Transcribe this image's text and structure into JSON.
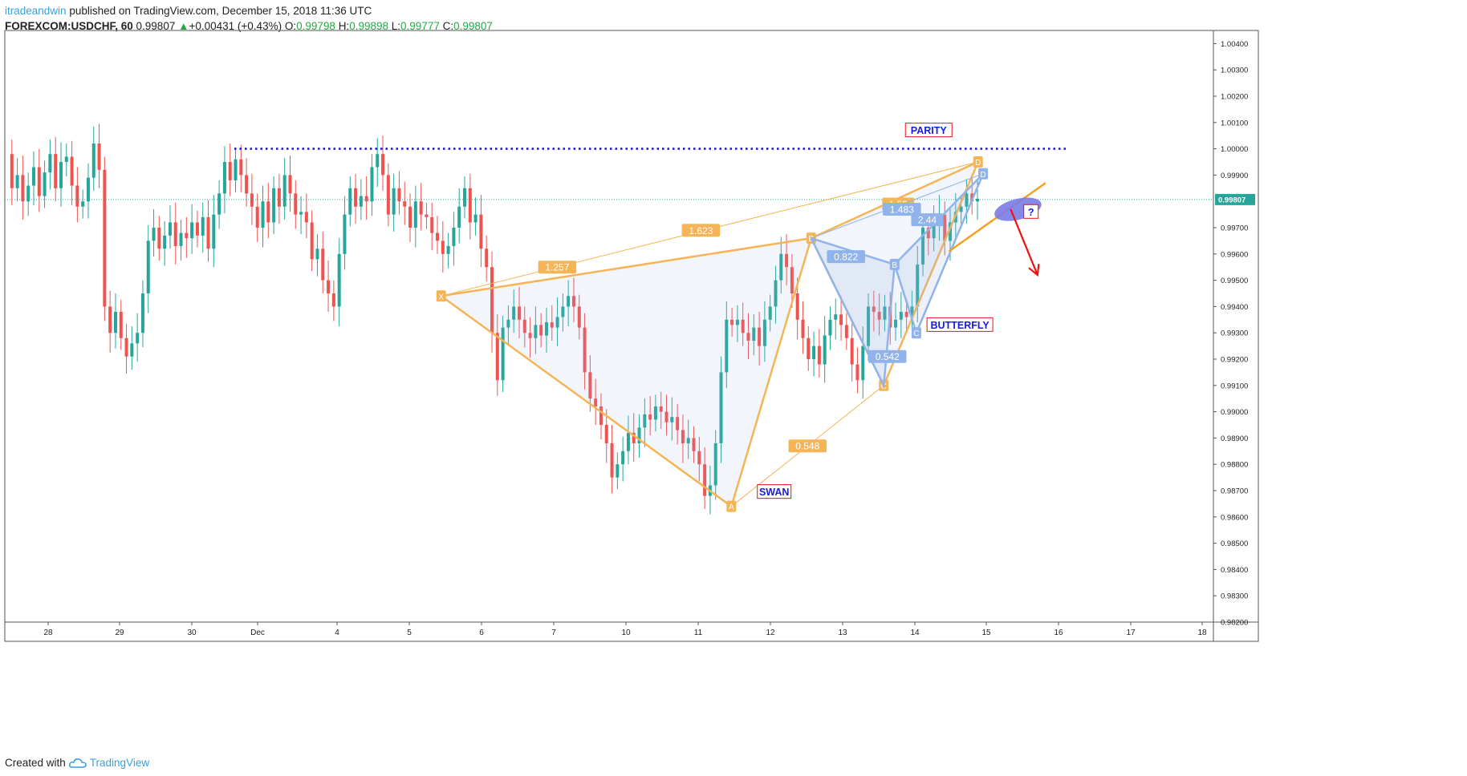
{
  "header": {
    "author": "itradeandwin",
    "published_text": " published on TradingView.com, December 15, 2018 11:36 UTC",
    "symbol": "FOREXCOM:USDCHF, 60",
    "last": "0.99807",
    "change_arrow": "▲",
    "change": "+0.00431 (+0.43%)",
    "o_label": "O:",
    "o_value": "0.99798",
    "h_label": "H:",
    "h_value": "0.99898",
    "l_label": "L:",
    "l_value": "0.99777",
    "c_label": "C:",
    "c_value": "0.99807"
  },
  "footer": {
    "created_with": "Created with",
    "brand": "TradingView",
    "logo_icon": "tradingview-cloud-icon"
  },
  "colors": {
    "up": "#26a69a",
    "down": "#ef5350",
    "swan": "#f5b455",
    "butterfly": "#8fb3ea",
    "parity_line": "#1a1adf",
    "current_line": "#26a69a",
    "arrow": "#ee1111",
    "trendline": "#f5a020",
    "ellipse": "#7b7be8"
  },
  "chart_data": {
    "type": "candlestick",
    "symbol": "FOREXCOM:USDCHF",
    "interval": "60",
    "ylim": [
      0.982,
      1.0045
    ],
    "y_ticks": [
      "1.00400",
      "1.00300",
      "1.00200",
      "1.00100",
      "1.00000",
      "0.99900",
      "0.99700",
      "0.99600",
      "0.99500",
      "0.99400",
      "0.99300",
      "0.99200",
      "0.99100",
      "0.99000",
      "0.98900",
      "0.98800",
      "0.98700",
      "0.98600",
      "0.98500",
      "0.98400",
      "0.98300",
      "0.98200"
    ],
    "x_ticks": [
      "28",
      "29",
      "30",
      "Dec",
      "4",
      "5",
      "6",
      "7",
      "10",
      "11",
      "12",
      "13",
      "14",
      "15",
      "16",
      "17",
      "18"
    ],
    "current_price": "0.99807",
    "parity_level": 1.0,
    "price_path": [
      [
        0,
        0.9998
      ],
      [
        1,
        0.9985
      ],
      [
        2,
        0.999
      ],
      [
        3,
        0.998
      ],
      [
        4,
        0.9986
      ],
      [
        5,
        0.9993
      ],
      [
        6,
        0.9982
      ],
      [
        7,
        0.9991
      ],
      [
        8,
        0.9998
      ],
      [
        9,
        0.9985
      ],
      [
        10,
        0.9995
      ],
      [
        11,
        0.9997
      ],
      [
        12,
        0.9986
      ],
      [
        13,
        0.9978
      ],
      [
        14,
        0.998
      ],
      [
        15,
        0.9989
      ],
      [
        16,
        1.0002
      ],
      [
        17,
        0.9992
      ],
      [
        18,
        0.994
      ],
      [
        19,
        0.993
      ],
      [
        20,
        0.9938
      ],
      [
        21,
        0.9928
      ],
      [
        22,
        0.9921
      ],
      [
        23,
        0.9926
      ],
      [
        24,
        0.993
      ],
      [
        25,
        0.9945
      ],
      [
        26,
        0.9965
      ],
      [
        27,
        0.997
      ],
      [
        28,
        0.9962
      ],
      [
        29,
        0.9967
      ],
      [
        30,
        0.9972
      ],
      [
        31,
        0.9963
      ],
      [
        32,
        0.9968
      ],
      [
        33,
        0.9966
      ],
      [
        34,
        0.9972
      ],
      [
        35,
        0.9967
      ],
      [
        36,
        0.9974
      ],
      [
        37,
        0.9962
      ],
      [
        38,
        0.9975
      ],
      [
        39,
        0.9983
      ],
      [
        40,
        0.9995
      ],
      [
        41,
        0.9988
      ],
      [
        42,
        0.9996
      ],
      [
        43,
        0.999
      ],
      [
        44,
        0.9983
      ],
      [
        45,
        0.9978
      ],
      [
        46,
        0.997
      ],
      [
        47,
        0.998
      ],
      [
        48,
        0.9972
      ],
      [
        49,
        0.9985
      ],
      [
        50,
        0.9978
      ],
      [
        51,
        0.999
      ],
      [
        52,
        0.9983
      ],
      [
        53,
        0.9975
      ],
      [
        54,
        0.9976
      ],
      [
        55,
        0.9972
      ],
      [
        56,
        0.9958
      ],
      [
        57,
        0.9962
      ],
      [
        58,
        0.995
      ],
      [
        59,
        0.9945
      ],
      [
        60,
        0.994
      ],
      [
        61,
        0.996
      ],
      [
        62,
        0.9975
      ],
      [
        63,
        0.9985
      ],
      [
        64,
        0.9978
      ],
      [
        65,
        0.9982
      ],
      [
        66,
        0.998
      ],
      [
        67,
        0.9993
      ],
      [
        68,
        0.9998
      ],
      [
        69,
        0.999
      ],
      [
        70,
        0.9975
      ],
      [
        71,
        0.9985
      ],
      [
        72,
        0.998
      ],
      [
        73,
        0.9978
      ],
      [
        74,
        0.997
      ],
      [
        75,
        0.998
      ],
      [
        76,
        0.9975
      ],
      [
        77,
        0.9974
      ],
      [
        78,
        0.9968
      ],
      [
        79,
        0.9965
      ],
      [
        80,
        0.996
      ],
      [
        81,
        0.9963
      ],
      [
        82,
        0.997
      ],
      [
        83,
        0.9978
      ],
      [
        84,
        0.9985
      ],
      [
        85,
        0.9972
      ],
      [
        86,
        0.9975
      ],
      [
        87,
        0.9962
      ],
      [
        88,
        0.9955
      ],
      [
        89,
        0.993
      ],
      [
        90,
        0.9912
      ],
      [
        91,
        0.9932
      ],
      [
        92,
        0.9935
      ],
      [
        93,
        0.994
      ],
      [
        94,
        0.9935
      ],
      [
        95,
        0.993
      ],
      [
        96,
        0.9928
      ],
      [
        97,
        0.9933
      ],
      [
        98,
        0.9929
      ],
      [
        99,
        0.9934
      ],
      [
        100,
        0.9932
      ],
      [
        101,
        0.9936
      ],
      [
        102,
        0.994
      ],
      [
        103,
        0.9944
      ],
      [
        104,
        0.994
      ],
      [
        105,
        0.9932
      ],
      [
        106,
        0.9915
      ],
      [
        107,
        0.9905
      ],
      [
        108,
        0.9902
      ],
      [
        109,
        0.9895
      ],
      [
        110,
        0.9888
      ],
      [
        111,
        0.9875
      ],
      [
        112,
        0.988
      ],
      [
        113,
        0.9885
      ],
      [
        114,
        0.9892
      ],
      [
        115,
        0.9888
      ],
      [
        116,
        0.9894
      ],
      [
        117,
        0.9899
      ],
      [
        118,
        0.9897
      ],
      [
        119,
        0.9902
      ],
      [
        120,
        0.99
      ],
      [
        121,
        0.9896
      ],
      [
        122,
        0.9898
      ],
      [
        123,
        0.9893
      ],
      [
        124,
        0.9888
      ],
      [
        125,
        0.989
      ],
      [
        126,
        0.9885
      ],
      [
        127,
        0.988
      ],
      [
        128,
        0.9868
      ],
      [
        129,
        0.9872
      ],
      [
        130,
        0.9888
      ],
      [
        131,
        0.9915
      ],
      [
        132,
        0.9935
      ],
      [
        133,
        0.9933
      ],
      [
        134,
        0.9935
      ],
      [
        135,
        0.993
      ],
      [
        136,
        0.9927
      ],
      [
        137,
        0.9932
      ],
      [
        138,
        0.9925
      ],
      [
        139,
        0.9935
      ],
      [
        140,
        0.994
      ],
      [
        141,
        0.995
      ],
      [
        142,
        0.996
      ],
      [
        143,
        0.9955
      ],
      [
        144,
        0.9945
      ],
      [
        145,
        0.9935
      ],
      [
        146,
        0.9928
      ],
      [
        147,
        0.992
      ],
      [
        148,
        0.9925
      ],
      [
        149,
        0.9918
      ],
      [
        150,
        0.9929
      ],
      [
        151,
        0.9935
      ],
      [
        152,
        0.9937
      ],
      [
        153,
        0.9933
      ],
      [
        154,
        0.9928
      ],
      [
        155,
        0.9918
      ],
      [
        156,
        0.9912
      ],
      [
        157,
        0.9925
      ],
      [
        158,
        0.994
      ],
      [
        159,
        0.9938
      ],
      [
        160,
        0.9935
      ],
      [
        161,
        0.994
      ],
      [
        162,
        0.9932
      ],
      [
        163,
        0.9935
      ],
      [
        164,
        0.9938
      ],
      [
        165,
        0.9936
      ],
      [
        166,
        0.994
      ],
      [
        167,
        0.9956
      ],
      [
        168,
        0.997
      ],
      [
        169,
        0.9966
      ],
      [
        170,
        0.9972
      ],
      [
        171,
        0.9975
      ],
      [
        172,
        0.9965
      ],
      [
        173,
        0.9972
      ],
      [
        174,
        0.9976
      ],
      [
        175,
        0.9978
      ],
      [
        176,
        0.9983
      ],
      [
        177,
        0.998
      ],
      [
        178,
        0.9981
      ]
    ],
    "patterns": [
      {
        "name": "SWAN",
        "color": "#f5b455",
        "points": [
          {
            "label": "X",
            "day": 7.4,
            "price": 0.9944
          },
          {
            "label": "A",
            "day": 11.4,
            "price": 0.9864
          },
          {
            "label": "B",
            "day": 12.5,
            "price": 0.9966
          },
          {
            "label": "C",
            "day": 13.5,
            "price": 0.991
          },
          {
            "label": "D",
            "day": 14.8,
            "price": 0.9995
          }
        ],
        "ratios": [
          {
            "text": "1.257",
            "day": 9.0,
            "price": 0.9955
          },
          {
            "text": "1.623",
            "day": 10.98,
            "price": 0.9969
          },
          {
            "text": "0.548",
            "day": 12.45,
            "price": 0.9887
          },
          {
            "text": "1.53",
            "day": 13.7,
            "price": 0.9979
          }
        ]
      },
      {
        "name": "BUTTERFLY",
        "color": "#8fb3ea",
        "points": [
          {
            "label": "B",
            "day": 13.65,
            "price": 0.9956
          },
          {
            "label": "C",
            "day": 13.95,
            "price": 0.993
          },
          {
            "label": "D",
            "day": 14.87,
            "price": 0.99905
          }
        ],
        "ratios": [
          {
            "text": "0.822",
            "day": 12.98,
            "price": 0.9959
          },
          {
            "text": "0.542",
            "day": 13.55,
            "price": 0.9921
          },
          {
            "text": "2.44",
            "day": 14.1,
            "price": 0.9973
          },
          {
            "text": "1.483",
            "day": 13.75,
            "price": 0.9977
          }
        ]
      }
    ],
    "annotations": [
      {
        "text": "PARITY",
        "day": 14.12,
        "price": 1.0007
      },
      {
        "text": "BUTTERFLY",
        "day": 14.55,
        "price": 0.9933
      },
      {
        "text": "SWAN",
        "day": 11.99,
        "price": 0.98695
      },
      {
        "text": "?",
        "day": 15.53,
        "price": 0.9976
      }
    ],
    "trendline": {
      "from": {
        "day": 14.4,
        "price": 0.9961
      },
      "to": {
        "day": 15.73,
        "price": 0.9987
      }
    },
    "projection_arrow": {
      "from": {
        "day": 15.25,
        "price": 0.9977
      },
      "to": {
        "day": 15.62,
        "price": 0.9952
      }
    },
    "target_zone": {
      "day": 15.35,
      "price": 0.9977
    }
  }
}
